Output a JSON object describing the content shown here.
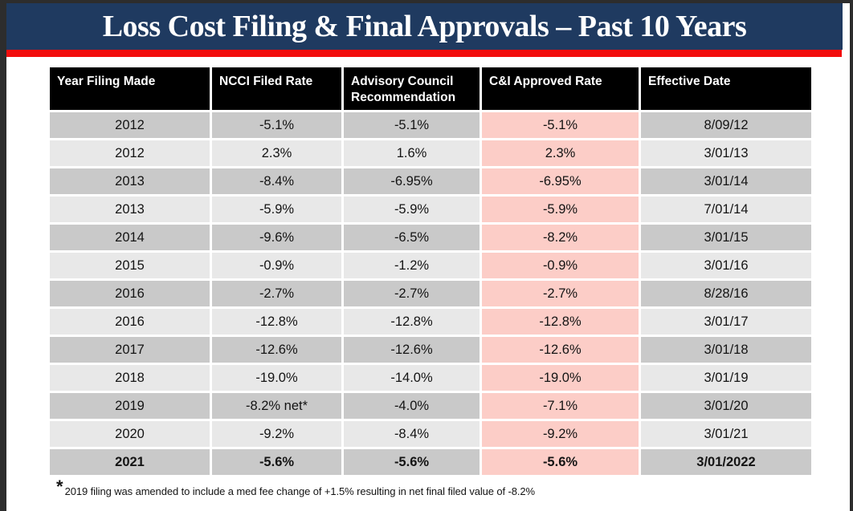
{
  "title": {
    "text": "Loss Cost Filing & Final Approvals – Past 10 Years"
  },
  "table": {
    "columns": [
      "Year Filing Made",
      "NCCI Filed Rate",
      "Advisory Council Recommendation",
      "C&I Approved Rate",
      "Effective Date"
    ],
    "rows": [
      {
        "year": "2012",
        "filed": "-5.1%",
        "advisory": "-5.1%",
        "approved": "-5.1%",
        "effective": "8/09/12",
        "shade": "dark",
        "bold": false
      },
      {
        "year": "2012",
        "filed": "2.3%",
        "advisory": "1.6%",
        "approved": "2.3%",
        "effective": "3/01/13",
        "shade": "light",
        "bold": false
      },
      {
        "year": "2013",
        "filed": "-8.4%",
        "advisory": "-6.95%",
        "approved": "-6.95%",
        "effective": "3/01/14",
        "shade": "dark",
        "bold": false
      },
      {
        "year": "2013",
        "filed": "-5.9%",
        "advisory": "-5.9%",
        "approved": "-5.9%",
        "effective": "7/01/14",
        "shade": "light",
        "bold": false
      },
      {
        "year": "2014",
        "filed": "-9.6%",
        "advisory": "-6.5%",
        "approved": "-8.2%",
        "effective": "3/01/15",
        "shade": "dark",
        "bold": false
      },
      {
        "year": "2015",
        "filed": "-0.9%",
        "advisory": "-1.2%",
        "approved": "-0.9%",
        "effective": "3/01/16",
        "shade": "light",
        "bold": false
      },
      {
        "year": "2016",
        "filed": "-2.7%",
        "advisory": "-2.7%",
        "approved": "-2.7%",
        "effective": "8/28/16",
        "shade": "dark",
        "bold": false
      },
      {
        "year": "2016",
        "filed": "-12.8%",
        "advisory": "-12.8%",
        "approved": "-12.8%",
        "effective": "3/01/17",
        "shade": "light",
        "bold": false
      },
      {
        "year": "2017",
        "filed": "-12.6%",
        "advisory": "-12.6%",
        "approved": "-12.6%",
        "effective": "3/01/18",
        "shade": "dark",
        "bold": false
      },
      {
        "year": "2018",
        "filed": "-19.0%",
        "advisory": "-14.0%",
        "approved": "-19.0%",
        "effective": "3/01/19",
        "shade": "light",
        "bold": false
      },
      {
        "year": "2019",
        "filed": "-8.2% net*",
        "advisory": "-4.0%",
        "approved": "-7.1%",
        "effective": "3/01/20",
        "shade": "dark",
        "bold": false
      },
      {
        "year": "2020",
        "filed": "-9.2%",
        "advisory": "-8.4%",
        "approved": "-9.2%",
        "effective": "3/01/21",
        "shade": "light",
        "bold": false
      },
      {
        "year": "2021",
        "filed": "-5.6%",
        "advisory": "-5.6%",
        "approved": "-5.6%",
        "effective": "3/01/2022",
        "shade": "dark",
        "bold": true
      }
    ]
  },
  "footnote": {
    "marker": "*",
    "text": "2019 filing was amended to include a med fee change of +1.5% resulting in net final filed value of -8.2%"
  },
  "colors": {
    "title_bar": "#1f3a60",
    "rule_red": "#f20d0d",
    "header_bg": "#000000",
    "row_dark": "#c9c9c9",
    "row_light": "#e8e8e8",
    "approved_highlight": "#fccdc7",
    "edge": "#2d2d2d"
  }
}
